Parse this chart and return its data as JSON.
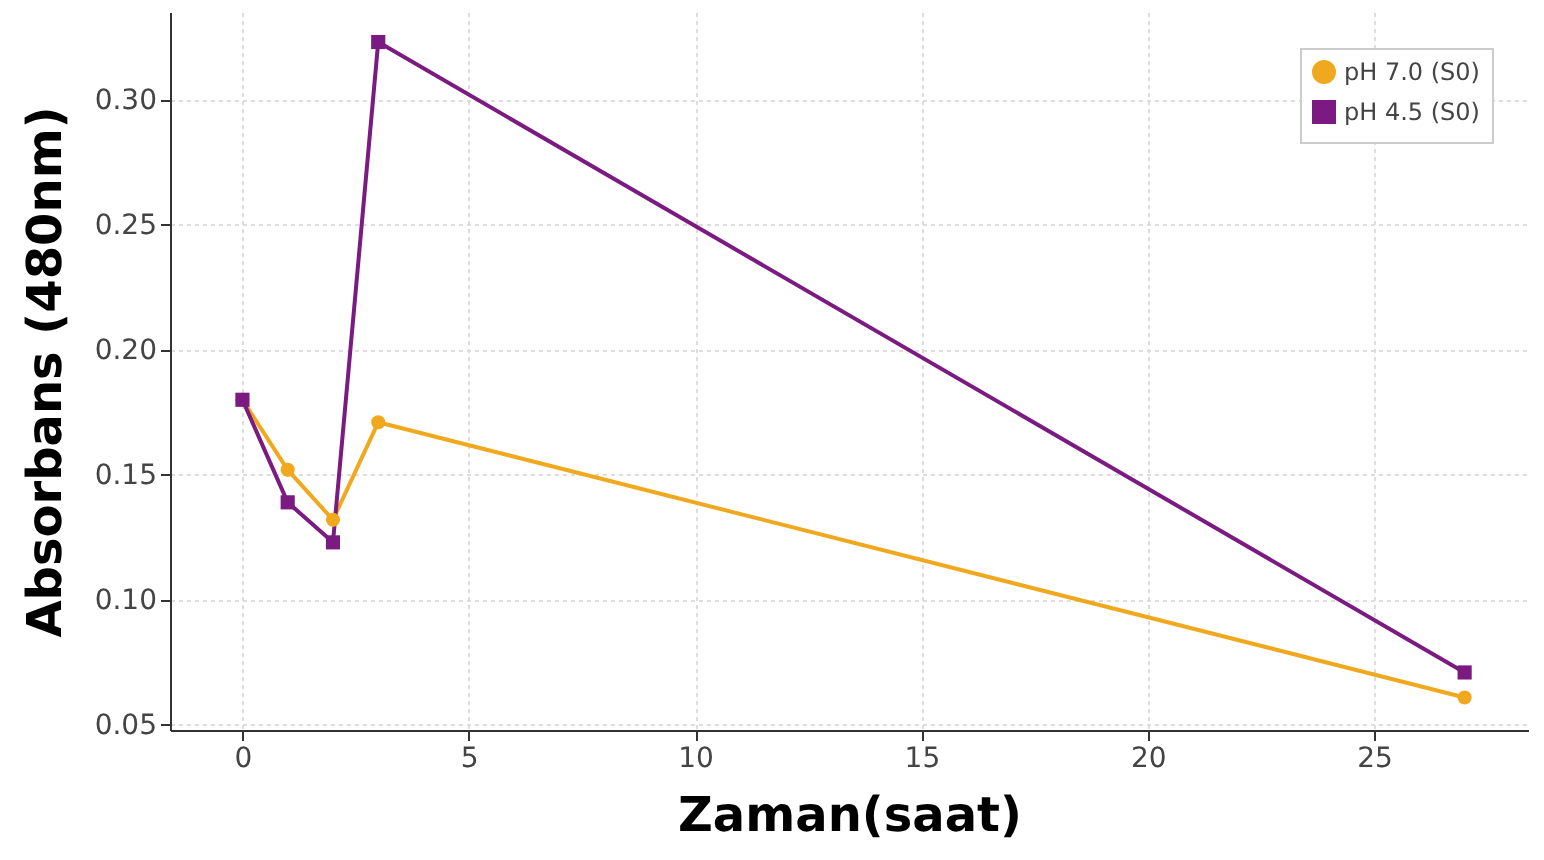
{
  "chart_data": {
    "type": "line",
    "xlabel": "Zaman(saat)",
    "ylabel": "Absorbans (480nm)",
    "xlim": [
      -1.6,
      28.4
    ],
    "ylim": [
      0.048,
      0.335
    ],
    "xticks": [
      0,
      5,
      10,
      15,
      20,
      25
    ],
    "yticks": [
      0.05,
      {
        "value": 0.1,
        "label": "0.10"
      },
      0.15,
      {
        "value": 0.2,
        "label": "0.20"
      },
      0.25,
      {
        "value": 0.3,
        "label": "0.30"
      }
    ],
    "grid": true,
    "legend": "top right",
    "line_style": "solid",
    "series": [
      {
        "name": "pH 7.0 (S0)",
        "color": "#f0a81e",
        "marker": "circle",
        "x": [
          0,
          1,
          2,
          3,
          27
        ],
        "values": [
          0.18,
          0.152,
          0.132,
          0.171,
          0.061
        ]
      },
      {
        "name": "pH 4.5 (S0)",
        "color": "#7b1a80",
        "marker": "square",
        "x": [
          0,
          1,
          2,
          3,
          27
        ],
        "values": [
          0.18,
          0.139,
          0.123,
          0.323,
          0.071
        ]
      }
    ]
  }
}
